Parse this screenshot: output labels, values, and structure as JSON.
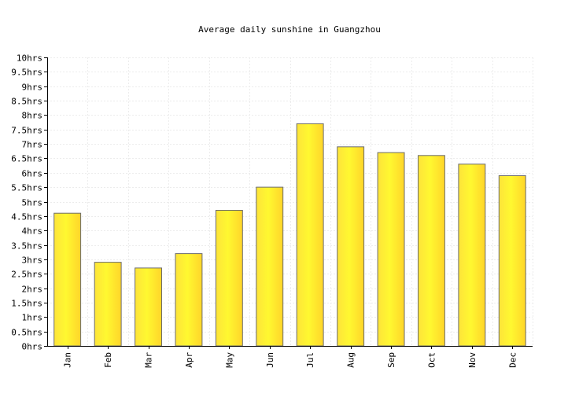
{
  "chart_data": {
    "type": "bar",
    "title": "Average daily sunshine in Guangzhou",
    "xlabel": "",
    "ylabel": "",
    "categories": [
      "Jan",
      "Feb",
      "Mar",
      "Apr",
      "May",
      "Jun",
      "Jul",
      "Aug",
      "Sep",
      "Oct",
      "Nov",
      "Dec"
    ],
    "values": [
      4.6,
      2.9,
      2.7,
      3.2,
      4.7,
      5.5,
      7.7,
      6.9,
      6.7,
      6.6,
      6.3,
      5.9
    ],
    "ylim": [
      0,
      10
    ],
    "y_ticks": [
      0,
      0.5,
      1,
      1.5,
      2,
      2.5,
      3,
      3.5,
      4,
      4.5,
      5,
      5.5,
      6,
      6.5,
      7,
      7.5,
      8,
      8.5,
      9,
      9.5,
      10
    ],
    "y_tick_labels": [
      "0hrs",
      "0.5hrs",
      "1hrs",
      "1.5hrs",
      "2hrs",
      "2.5hrs",
      "3hrs",
      "3.5hrs",
      "4hrs",
      "4.5hrs",
      "5hrs",
      "5.5hrs",
      "6hrs",
      "6.5hrs",
      "7hrs",
      "7.5hrs",
      "8hrs",
      "8.5hrs",
      "9hrs",
      "9.5hrs",
      "10hrs"
    ],
    "grid": true,
    "legend": "none",
    "colors": {
      "bar_edge": "#fde43a",
      "bar_mid": "#fff830",
      "bar_center": "#ffd52a",
      "bar_stroke": "#6b6b6b",
      "grid": "#ececec",
      "axis": "#000000"
    }
  }
}
